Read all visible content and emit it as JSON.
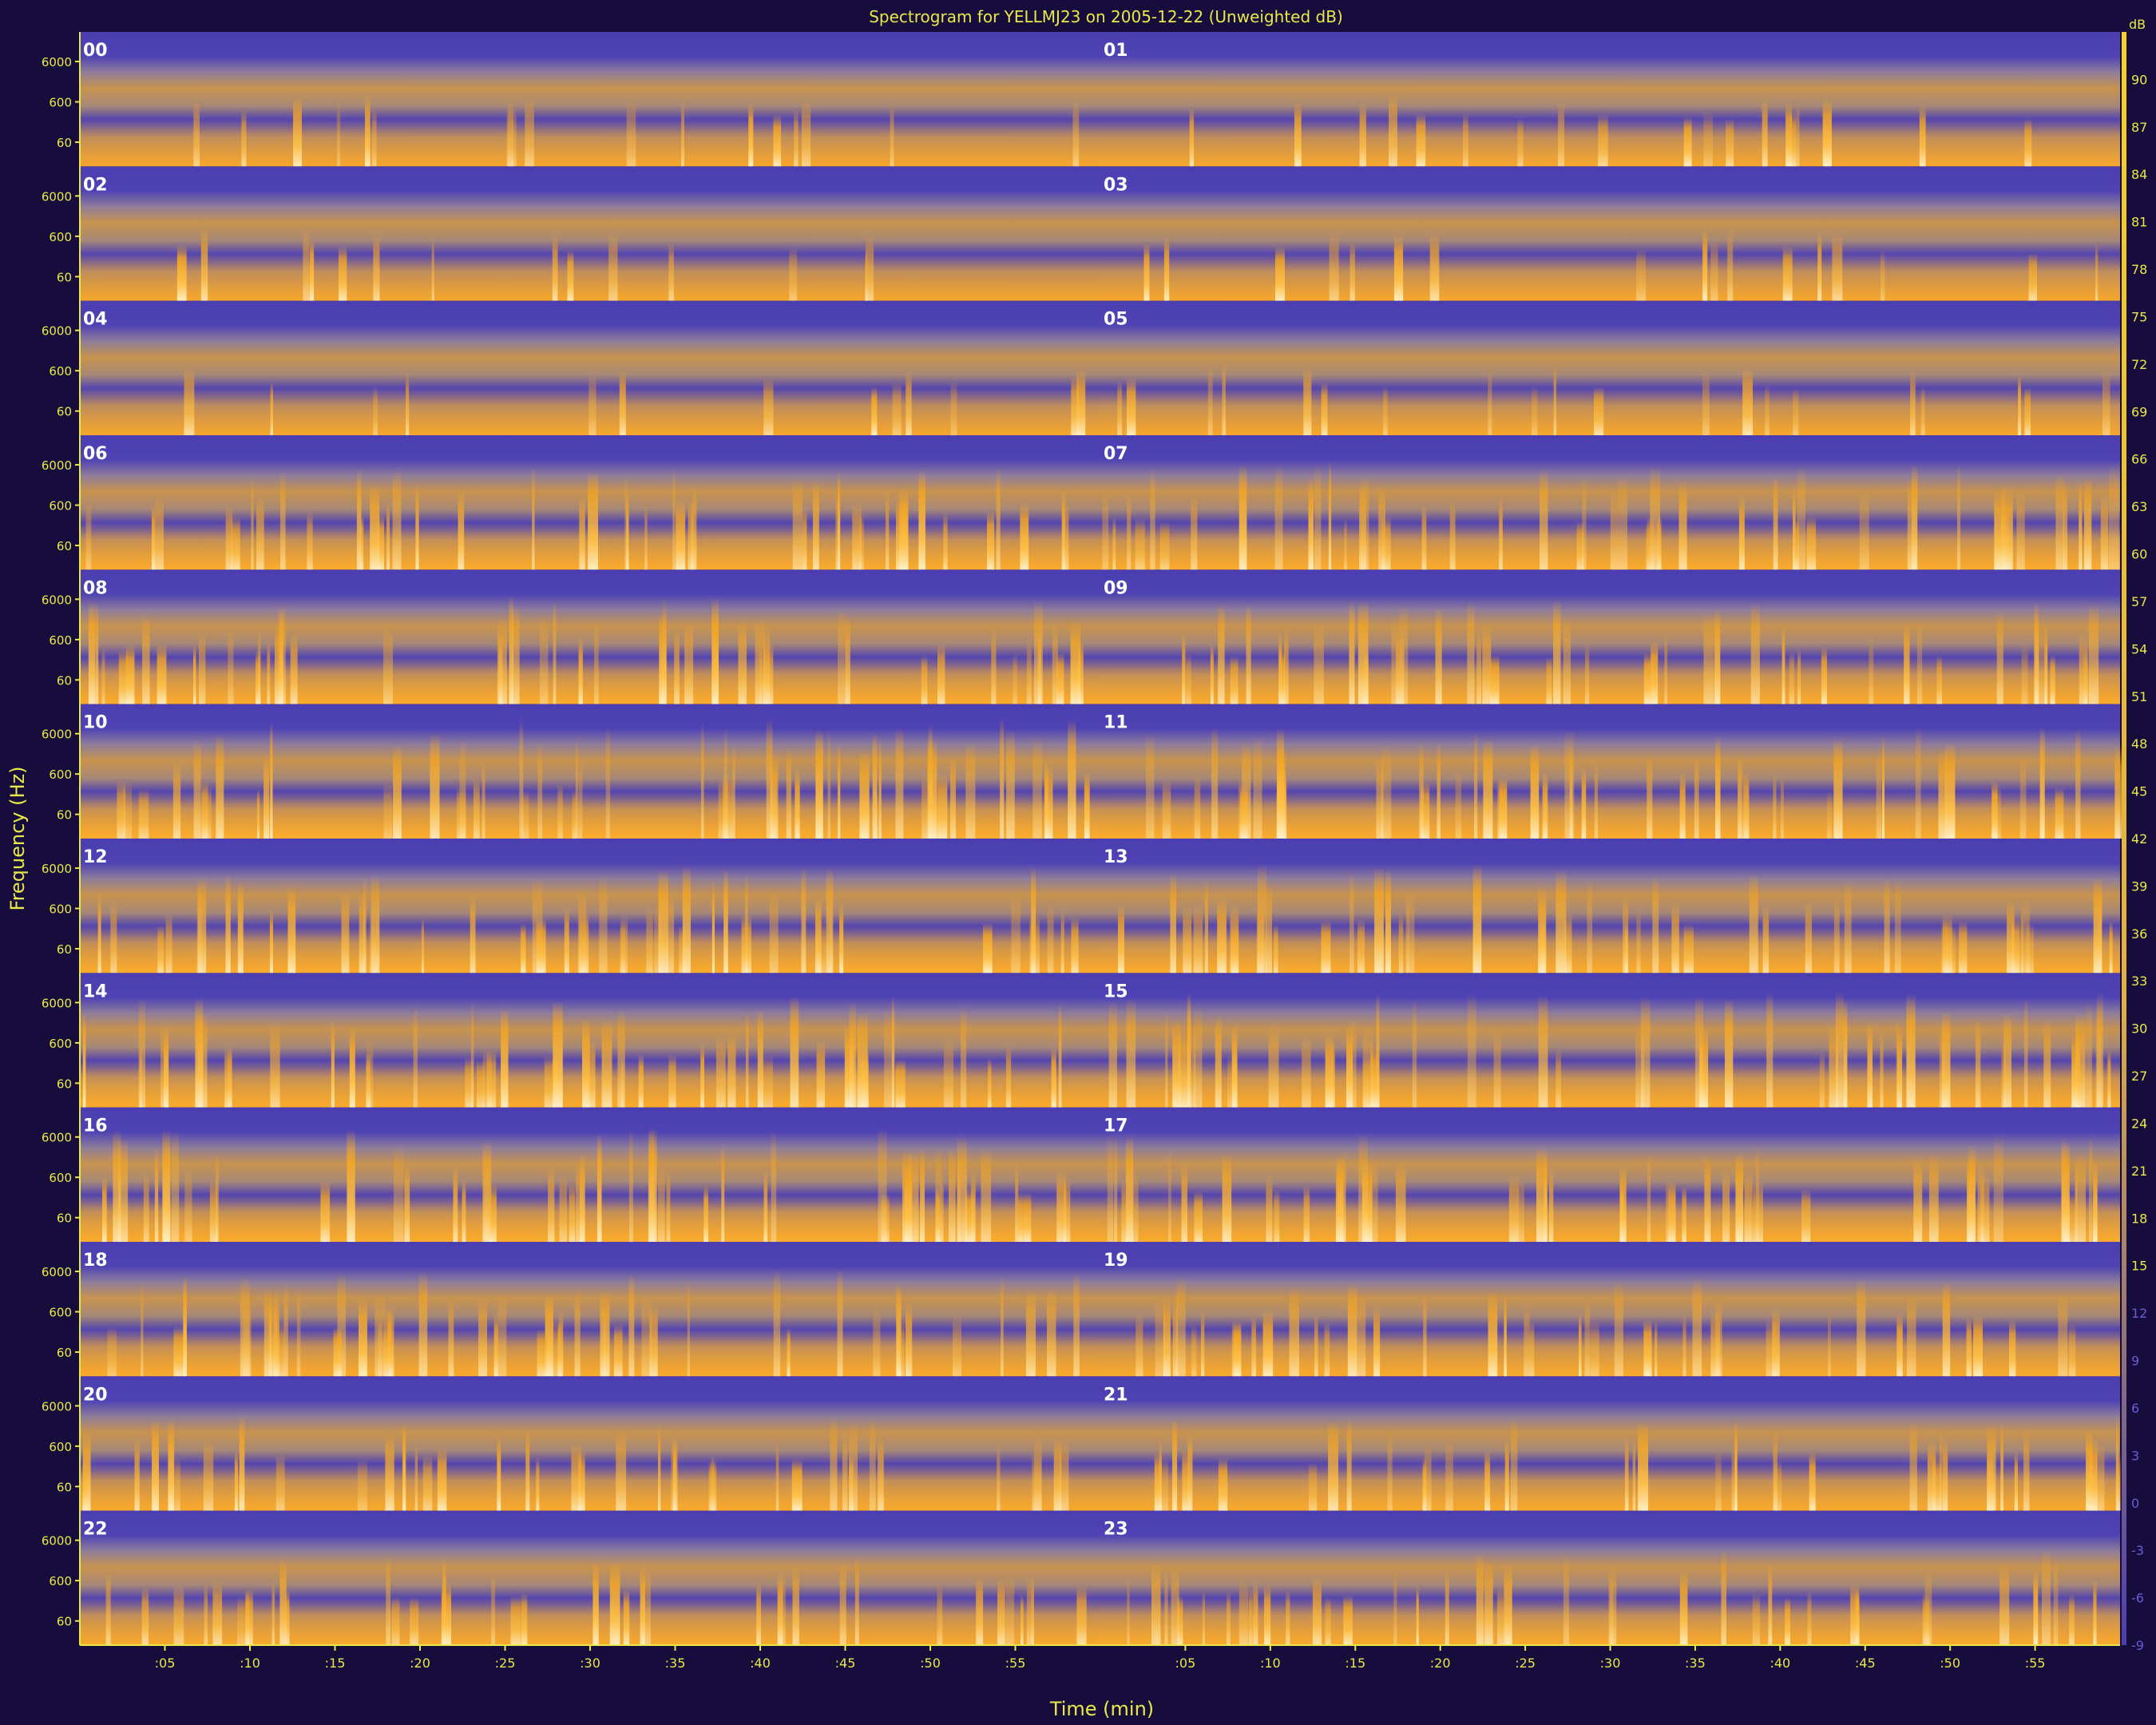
{
  "chart_data": {
    "type": "heatmap",
    "title": "Spectrogram for YELLMJ23 on 2005-12-22 (Unweighted dB)",
    "xlabel": "Time (min)",
    "ylabel": "Frequency (Hz)",
    "colorbar_unit": "dB",
    "colorbar_range": [
      -9,
      93
    ],
    "colorbar_ticks": [
      "90",
      "87",
      "84",
      "81",
      "78",
      "75",
      "72",
      "69",
      "66",
      "63",
      "60",
      "57",
      "54",
      "51",
      "48",
      "45",
      "42",
      "39",
      "36",
      "33",
      "30",
      "27",
      "24",
      "21",
      "18",
      "15",
      "12",
      "9",
      "6",
      "3",
      "0",
      "-3",
      "-6",
      "-9"
    ],
    "y_tick_labels": [
      "6000",
      "600",
      "60"
    ],
    "x_tick_labels_left": [
      ":05",
      ":10",
      ":15",
      ":20",
      ":25",
      ":30",
      ":35",
      ":40",
      ":45",
      ":50",
      ":55"
    ],
    "x_tick_labels_right": [
      ":05",
      ":10",
      ":15",
      ":20",
      ":25",
      ":30",
      ":35",
      ":40",
      ":45",
      ":50",
      ":55"
    ],
    "hours": [
      "00",
      "01",
      "02",
      "03",
      "04",
      "05",
      "06",
      "07",
      "08",
      "09",
      "10",
      "11",
      "12",
      "13",
      "14",
      "15",
      "16",
      "17",
      "18",
      "19",
      "20",
      "21",
      "22",
      "23"
    ],
    "activity": [
      0.15,
      0.18,
      0.12,
      0.15,
      0.08,
      0.2,
      0.65,
      0.72,
      0.7,
      0.68,
      0.85,
      0.75,
      0.7,
      0.72,
      0.75,
      0.8,
      0.78,
      0.7,
      0.7,
      0.6,
      0.55,
      0.55,
      0.5,
      0.55
    ],
    "colors": {
      "background": "#170d3c",
      "low": "#4b3eb0",
      "mid": "#8f7d9a",
      "high": "#f5a623",
      "peak": "#fff6d8",
      "axis": "#e8e84a"
    }
  }
}
